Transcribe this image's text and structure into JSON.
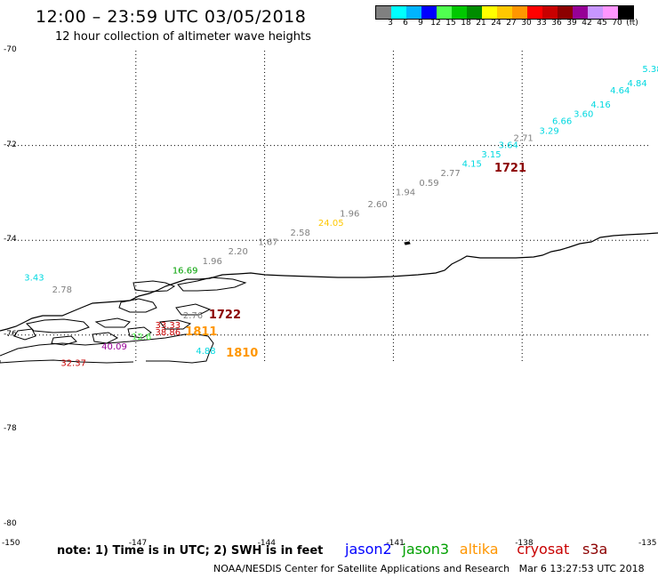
{
  "header": {
    "title": "12:00 – 23:59 UTC 03/05/2018",
    "subtitle": "12 hour collection of altimeter wave heights"
  },
  "legend": {
    "unit": "(ft)",
    "swatches": [
      {
        "color": "#808080",
        "label": "3"
      },
      {
        "color": "#00ffff",
        "label": "6"
      },
      {
        "color": "#00b4ff",
        "label": "9"
      },
      {
        "color": "#0000ff",
        "label": "12"
      },
      {
        "color": "#50ff50",
        "label": "15"
      },
      {
        "color": "#00c800",
        "label": "18"
      },
      {
        "color": "#008c00",
        "label": "21"
      },
      {
        "color": "#ffff00",
        "label": "24"
      },
      {
        "color": "#ffc800",
        "label": "27"
      },
      {
        "color": "#ff9600",
        "label": "30"
      },
      {
        "color": "#ff0000",
        "label": "33"
      },
      {
        "color": "#c80000",
        "label": "36"
      },
      {
        "color": "#8c0000",
        "label": "39"
      },
      {
        "color": "#960096",
        "label": "42"
      },
      {
        "color": "#c896ff",
        "label": "45"
      },
      {
        "color": "#ff96ff",
        "label": "70"
      },
      {
        "color": "#000000",
        "label": ""
      }
    ]
  },
  "axes": {
    "lat_labels": [
      "-70",
      "-72",
      "-74",
      "-76",
      "-78",
      "-80"
    ],
    "lon_labels": [
      "-150",
      "-147",
      "-144",
      "-141",
      "-138",
      "-135"
    ]
  },
  "observations": [
    {
      "value": "5.38",
      "color": "#00d8e0",
      "lat": -70.45,
      "lon": -135.2
    },
    {
      "value": "4.84",
      "color": "#00d8e0",
      "lat": -70.75,
      "lon": -135.55
    },
    {
      "value": "4.64",
      "color": "#00d8e0",
      "lat": -70.9,
      "lon": -135.95
    },
    {
      "value": "4.16",
      "color": "#00d8e0",
      "lat": -71.2,
      "lon": -136.4
    },
    {
      "value": "3.60",
      "color": "#00d8e0",
      "lat": -71.4,
      "lon": -136.8
    },
    {
      "value": "6.66",
      "color": "#00d8e0",
      "lat": -71.55,
      "lon": -137.3
    },
    {
      "value": "3.29",
      "color": "#00d8e0",
      "lat": -71.75,
      "lon": -137.6
    },
    {
      "value": "2.71",
      "color": "#808080",
      "lat": -71.9,
      "lon": -138.2
    },
    {
      "value": "3.64",
      "color": "#00d8e0",
      "lat": -72.05,
      "lon": -138.55
    },
    {
      "value": "3.15",
      "color": "#00d8e0",
      "lat": -72.25,
      "lon": -138.95
    },
    {
      "value": "4.15",
      "color": "#00d8e0",
      "lat": -72.45,
      "lon": -139.4
    },
    {
      "value": "2.77",
      "color": "#808080",
      "lat": -72.65,
      "lon": -139.9
    },
    {
      "value": "0.59",
      "color": "#808080",
      "lat": -72.85,
      "lon": -140.4
    },
    {
      "value": "1.94",
      "color": "#808080",
      "lat": -73.05,
      "lon": -140.95
    },
    {
      "value": "2.60",
      "color": "#808080",
      "lat": -73.3,
      "lon": -141.6
    },
    {
      "value": "1.96",
      "color": "#808080",
      "lat": -73.5,
      "lon": -142.25
    },
    {
      "value": "24.05",
      "color": "#ffc800",
      "lat": -73.7,
      "lon": -142.75
    },
    {
      "value": "2.58",
      "color": "#808080",
      "lat": -73.9,
      "lon": -143.4
    },
    {
      "value": "1.67",
      "color": "#808080",
      "lat": -74.1,
      "lon": -144.15
    },
    {
      "value": "2.20",
      "color": "#808080",
      "lat": -74.3,
      "lon": -144.85
    },
    {
      "value": "1.96",
      "color": "#808080",
      "lat": -74.5,
      "lon": -145.45
    },
    {
      "value": "16.69",
      "color": "#00a000",
      "lat": -74.7,
      "lon": -146.15
    },
    {
      "value": "3.43",
      "color": "#00d8e0",
      "lat": -74.85,
      "lon": -149.6
    },
    {
      "value": "2.78",
      "color": "#808080",
      "lat": -75.1,
      "lon": -148.95
    },
    {
      "value": "2.76",
      "color": "#808080",
      "lat": -75.65,
      "lon": -145.9
    },
    {
      "value": "33.33",
      "color": "#c80000",
      "lat": -75.85,
      "lon": -146.55
    },
    {
      "value": "38.86",
      "color": "#c80000",
      "lat": -76.0,
      "lon": -146.55
    },
    {
      "value": "12.6",
      "color": "#50ff50",
      "lat": -76.1,
      "lon": -147.1
    },
    {
      "value": "40.09",
      "color": "#960096",
      "lat": -76.3,
      "lon": -147.8
    },
    {
      "value": "32.37",
      "color": "#c80000",
      "lat": -76.65,
      "lon": -148.75
    },
    {
      "value": "4.88",
      "color": "#00d8e0",
      "lat": -76.4,
      "lon": -145.6
    }
  ],
  "pass_times": [
    {
      "value": "1721",
      "color": "#8c0000",
      "lat": -72.55,
      "lon": -138.65
    },
    {
      "value": "1722",
      "color": "#8c0000",
      "lat": -75.65,
      "lon": -145.3
    },
    {
      "value": "1811",
      "color": "#ff9600",
      "lat": -76.0,
      "lon": -145.85
    },
    {
      "value": "1810",
      "color": "#ff9600",
      "lat": -76.45,
      "lon": -144.9
    }
  ],
  "footer": {
    "note": "note: 1) Time is in UTC; 2) SWH is in feet",
    "satellites": [
      {
        "name": "jason2",
        "color": "#0000ff"
      },
      {
        "name": "jason3",
        "color": "#00a000"
      },
      {
        "name": "altika",
        "color": "#ff9600"
      },
      {
        "name": "cryosat",
        "color": "#c80000"
      },
      {
        "name": "s3a",
        "color": "#8c0000"
      }
    ],
    "credit": "NOAA/NESDIS Center for Satellite Applications and Research",
    "timestamp": "Mar  6 13:27:53 UTC 2018"
  }
}
